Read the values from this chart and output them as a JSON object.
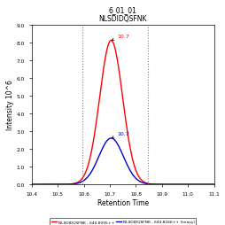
{
  "title_line1": "6_01_01",
  "title_line2": "NLSDIDQSFNK",
  "xlabel": "Retention Time",
  "ylabel": "Intensity 10^6",
  "xlim": [
    10.4,
    11.1
  ],
  "ylim": [
    0.0,
    9.0
  ],
  "yticks": [
    0.0,
    1.0,
    2.0,
    3.0,
    4.0,
    5.0,
    6.0,
    7.0,
    8.0,
    9.0
  ],
  "ytick_labels": [
    "0.0",
    "1.0",
    "2.0",
    "3.0",
    "4.0",
    "5.0",
    "6.0",
    "7.0",
    "8.0",
    "9.0"
  ],
  "xticks": [
    10.4,
    10.5,
    10.6,
    10.7,
    10.8,
    10.9,
    11.0,
    11.1
  ],
  "vline1": 10.595,
  "vline2": 10.845,
  "peak_mu": 10.705,
  "red_sigma": 0.044,
  "blue_sigma": 0.047,
  "red_peak_label": "10.7",
  "blue_peak_label": "10.7",
  "red_peak_height": 8.1,
  "blue_peak_height": 2.6,
  "red_color": "#FF0000",
  "blue_color": "#0000CC",
  "legend_red": "NLSDIDQSFNK - 640.8095++",
  "legend_blue": "NLSDIDQSFNK - 644.8166++ (heavy)",
  "bg_color": "#FFFFFF",
  "plot_bg_color": "#FFFFFF"
}
